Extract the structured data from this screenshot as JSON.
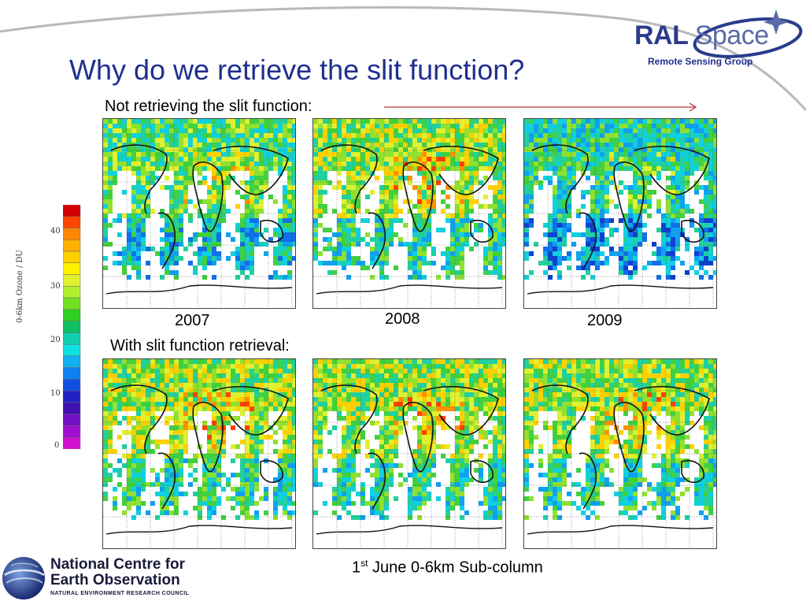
{
  "title": "Why do we retrieve the slit function?",
  "logo": {
    "brand_ral": "RAL",
    "brand_space": "Space",
    "subtitle": "Remote Sensing Group"
  },
  "section_top_label": "Not retrieving the slit function:",
  "section_bottom_label": "With slit function retrieval:",
  "years": [
    "2007",
    "2008",
    "2009"
  ],
  "colorbar": {
    "label": "0-6km Ozone / DU",
    "ticks": [
      "40",
      "30",
      "20",
      "10",
      "0"
    ],
    "colors": [
      "#d40000",
      "#ff4400",
      "#ff8800",
      "#ffb000",
      "#ffd000",
      "#fff000",
      "#e0f030",
      "#b0f030",
      "#70e020",
      "#30d020",
      "#10c060",
      "#10d0b0",
      "#10e0e0",
      "#10b0f0",
      "#1080f0",
      "#1050e0",
      "#2020c0",
      "#4010b0",
      "#7010c0",
      "#a010d0",
      "#d010d0"
    ]
  },
  "caption": {
    "prefix": "1",
    "sup": "st",
    "rest": " June 0-6km Sub-column"
  },
  "footer_logo": {
    "line1": "National Centre for",
    "line2": "Earth Observation",
    "line3": "NATURAL ENVIRONMENT RESEARCH COUNCIL"
  }
}
